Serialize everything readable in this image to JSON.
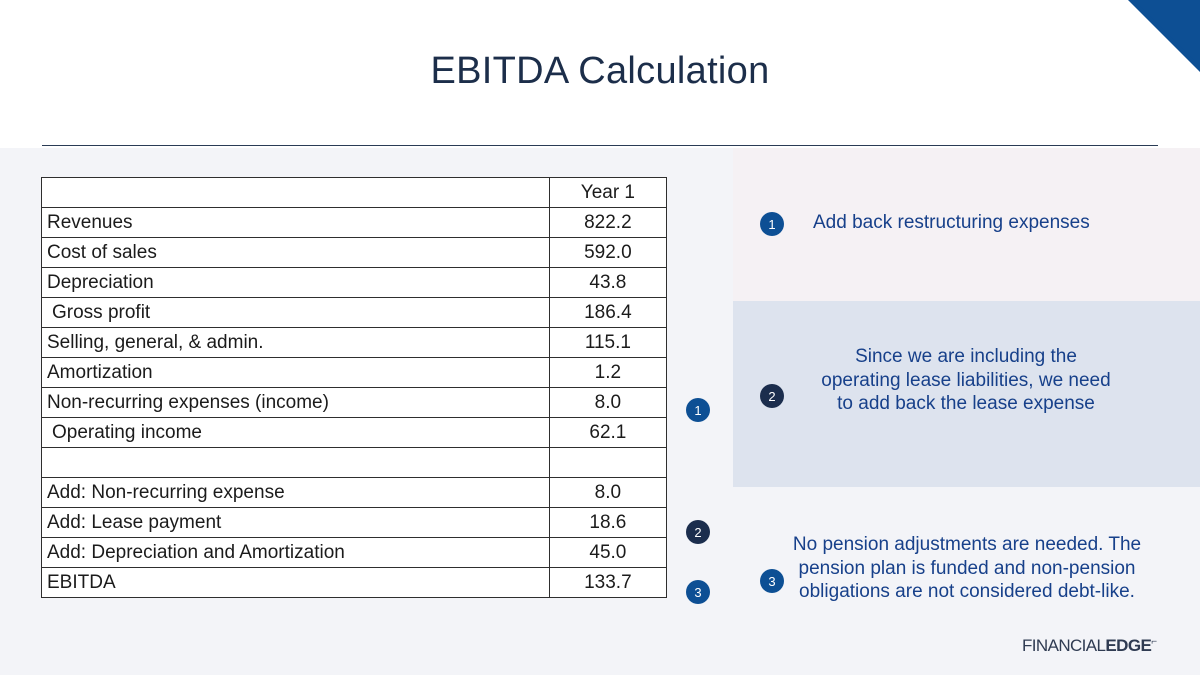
{
  "slide": {
    "title": "EBITDA Calculation",
    "accent_color": "#0d4f94",
    "dark_badge_color": "#1b2d4d"
  },
  "table": {
    "header": {
      "label": "",
      "value": "Year 1"
    },
    "rows": [
      {
        "label": "Revenues",
        "value": "822.2"
      },
      {
        "label": "Cost of sales",
        "value": "592.0"
      },
      {
        "label": "Depreciation",
        "value": "43.8"
      },
      {
        "label": "Gross profit",
        "value": "186.4"
      },
      {
        "label": "Selling, general, & admin.",
        "value": "115.1"
      },
      {
        "label": "Amortization",
        "value": "1.2"
      },
      {
        "label": "Non-recurring expenses (income)",
        "value": "8.0"
      },
      {
        "label": "Operating income",
        "value": "62.1"
      },
      {
        "label": "",
        "value": ""
      },
      {
        "label": "Add: Non-recurring expense",
        "value": "8.0"
      },
      {
        "label": "Add: Lease payment",
        "value": "18.6"
      },
      {
        "label": "Add: Depreciation and Amortization",
        "value": "45.0"
      },
      {
        "label": "EBITDA",
        "value": "133.7"
      }
    ]
  },
  "badges": {
    "one": "1",
    "two": "2",
    "three": "3"
  },
  "notes": {
    "note1": "Add back restructuring expenses",
    "note2": "Since we are including the operating lease liabilities, we need to add back the lease expense",
    "note3": "No pension adjustments are needed. The pension plan is funded and non-pension obligations are not considered debt-like."
  },
  "logo": {
    "light": "FINANCIAL",
    "bold": "EDGE"
  }
}
